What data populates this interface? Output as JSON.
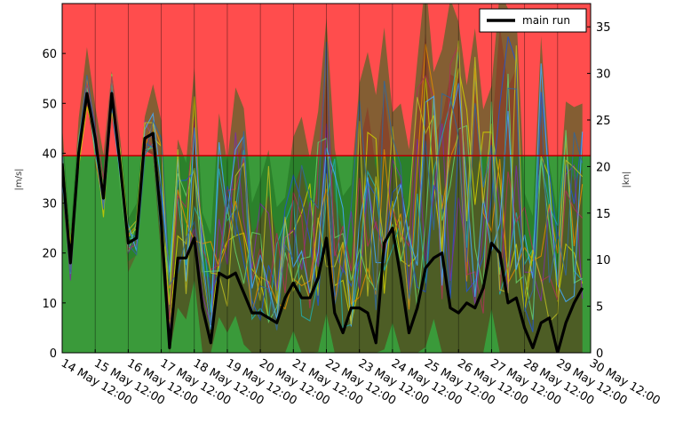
{
  "chart_data": {
    "type": "line",
    "title": "",
    "xlabel": "",
    "ylabel_left": "|m/s|",
    "ylabel_right": "|kn|",
    "ylim_left": [
      0,
      70
    ],
    "ylim_right": [
      0,
      37.5
    ],
    "yticks_left": [
      "0",
      "10",
      "20",
      "30",
      "40",
      "50",
      "60"
    ],
    "yticks_right": [
      "0",
      "5",
      "10",
      "15",
      "20",
      "25",
      "30",
      "35"
    ],
    "x_ticks": [
      "14 May 12:00",
      "15 May 12:00",
      "16 May 12:00",
      "17 May 12:00",
      "18 May 12:00",
      "19 May 12:00",
      "20 May 12:00",
      "21 May 12:00",
      "22 May 12:00",
      "23 May 12:00",
      "24 May 12:00",
      "25 May 12:00",
      "26 May 12:00",
      "27 May 12:00",
      "28 May 12:00",
      "29 May 12:00",
      "30 May 12:00"
    ],
    "threshold": 39.5,
    "zone_colors": {
      "above": "#ff4d4d",
      "below": "#3a9a3a",
      "threshold_line": "#b00000"
    },
    "grid": true,
    "legend_position": "top-right",
    "series": [
      {
        "name": "main run",
        "color": "#000000",
        "x_step_days": 0.25,
        "values": [
          38,
          18,
          40,
          52,
          43,
          31,
          52,
          38,
          22,
          23,
          43,
          44,
          26,
          1,
          19,
          19,
          23,
          9,
          2,
          16,
          15,
          16,
          12,
          8,
          8,
          7,
          6,
          11,
          14,
          11,
          11,
          15,
          23,
          8,
          4,
          9,
          9,
          8,
          2,
          22,
          25,
          15,
          4,
          9,
          17,
          19,
          20,
          9,
          8,
          10,
          9,
          13,
          22,
          20,
          10,
          11,
          5,
          1,
          6,
          7,
          0,
          6,
          10,
          13
        ]
      }
    ],
    "ensemble_members_depicted": true
  }
}
